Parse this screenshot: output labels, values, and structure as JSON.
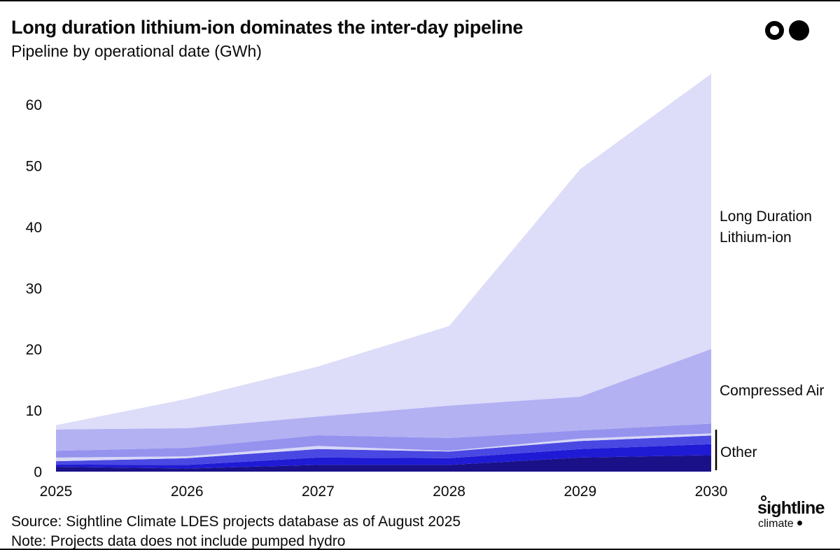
{
  "header": {
    "title": "Long duration lithium-ion dominates the inter-day pipeline",
    "subtitle": "Pipeline by operational date (GWh)",
    "brand_mark": {
      "left_icon": "open-circle",
      "right_icon": "filled-circle"
    }
  },
  "chart_data": {
    "type": "area",
    "stacked": true,
    "title": "Pipeline by operational date (GWh)",
    "xlabel": "",
    "ylabel": "GWh",
    "x": [
      2025,
      2026,
      2027,
      2028,
      2029,
      2030
    ],
    "xtick_labels": [
      "2025",
      "2026",
      "2027",
      "2028",
      "2029",
      "2030"
    ],
    "yticks": [
      0,
      10,
      20,
      30,
      40,
      50,
      60
    ],
    "ylim": [
      0,
      65
    ],
    "grid": false,
    "legend_position": "right-annotations",
    "series": [
      {
        "name": "Other - component 1",
        "group": "Other",
        "color": "#1a1189",
        "values": [
          0.8,
          0.5,
          1.1,
          1.1,
          2.3,
          2.7
        ]
      },
      {
        "name": "Other - component 2",
        "group": "Other",
        "color": "#1f1ad4",
        "values": [
          0.35,
          0.6,
          1.2,
          1.1,
          1.4,
          1.8
        ]
      },
      {
        "name": "Other - component 3",
        "group": "Other",
        "color": "#4a48e2",
        "values": [
          0.55,
          1.1,
          1.4,
          1.1,
          1.3,
          1.4
        ]
      },
      {
        "name": "Other - component 4",
        "group": "Other",
        "color": "#d7d7f8",
        "values": [
          0.6,
          0.3,
          0.5,
          0.1,
          0.4,
          0.35
        ]
      },
      {
        "name": "Other - component 5",
        "group": "Other",
        "color": "#9593ee",
        "values": [
          1.1,
          1.4,
          1.75,
          2.1,
          1.35,
          1.6
        ]
      },
      {
        "name": "Compressed Air",
        "group": "Compressed Air",
        "color": "#b3b1f2",
        "values": [
          3.5,
          3.2,
          3.05,
          5.3,
          5.5,
          12.2
        ]
      },
      {
        "name": "Long Duration Lithium-ion",
        "group": "Long Duration Lithium-ion",
        "color": "#dddcf9",
        "values": [
          0.7,
          4.8,
          8.2,
          13.0,
          37.2,
          45.0
        ]
      }
    ]
  },
  "annotations": {
    "long_duration_line1": "Long Duration",
    "long_duration_line2": "Lithium-ion",
    "compressed_air": "Compressed Air",
    "other": "Other"
  },
  "footer": {
    "source": "Source: Sightline Climate LDES projects database as of August 2025",
    "note": "Note: Projects data does not include pumped hydro"
  },
  "brand": {
    "name": "sightline",
    "subname": "climate"
  }
}
